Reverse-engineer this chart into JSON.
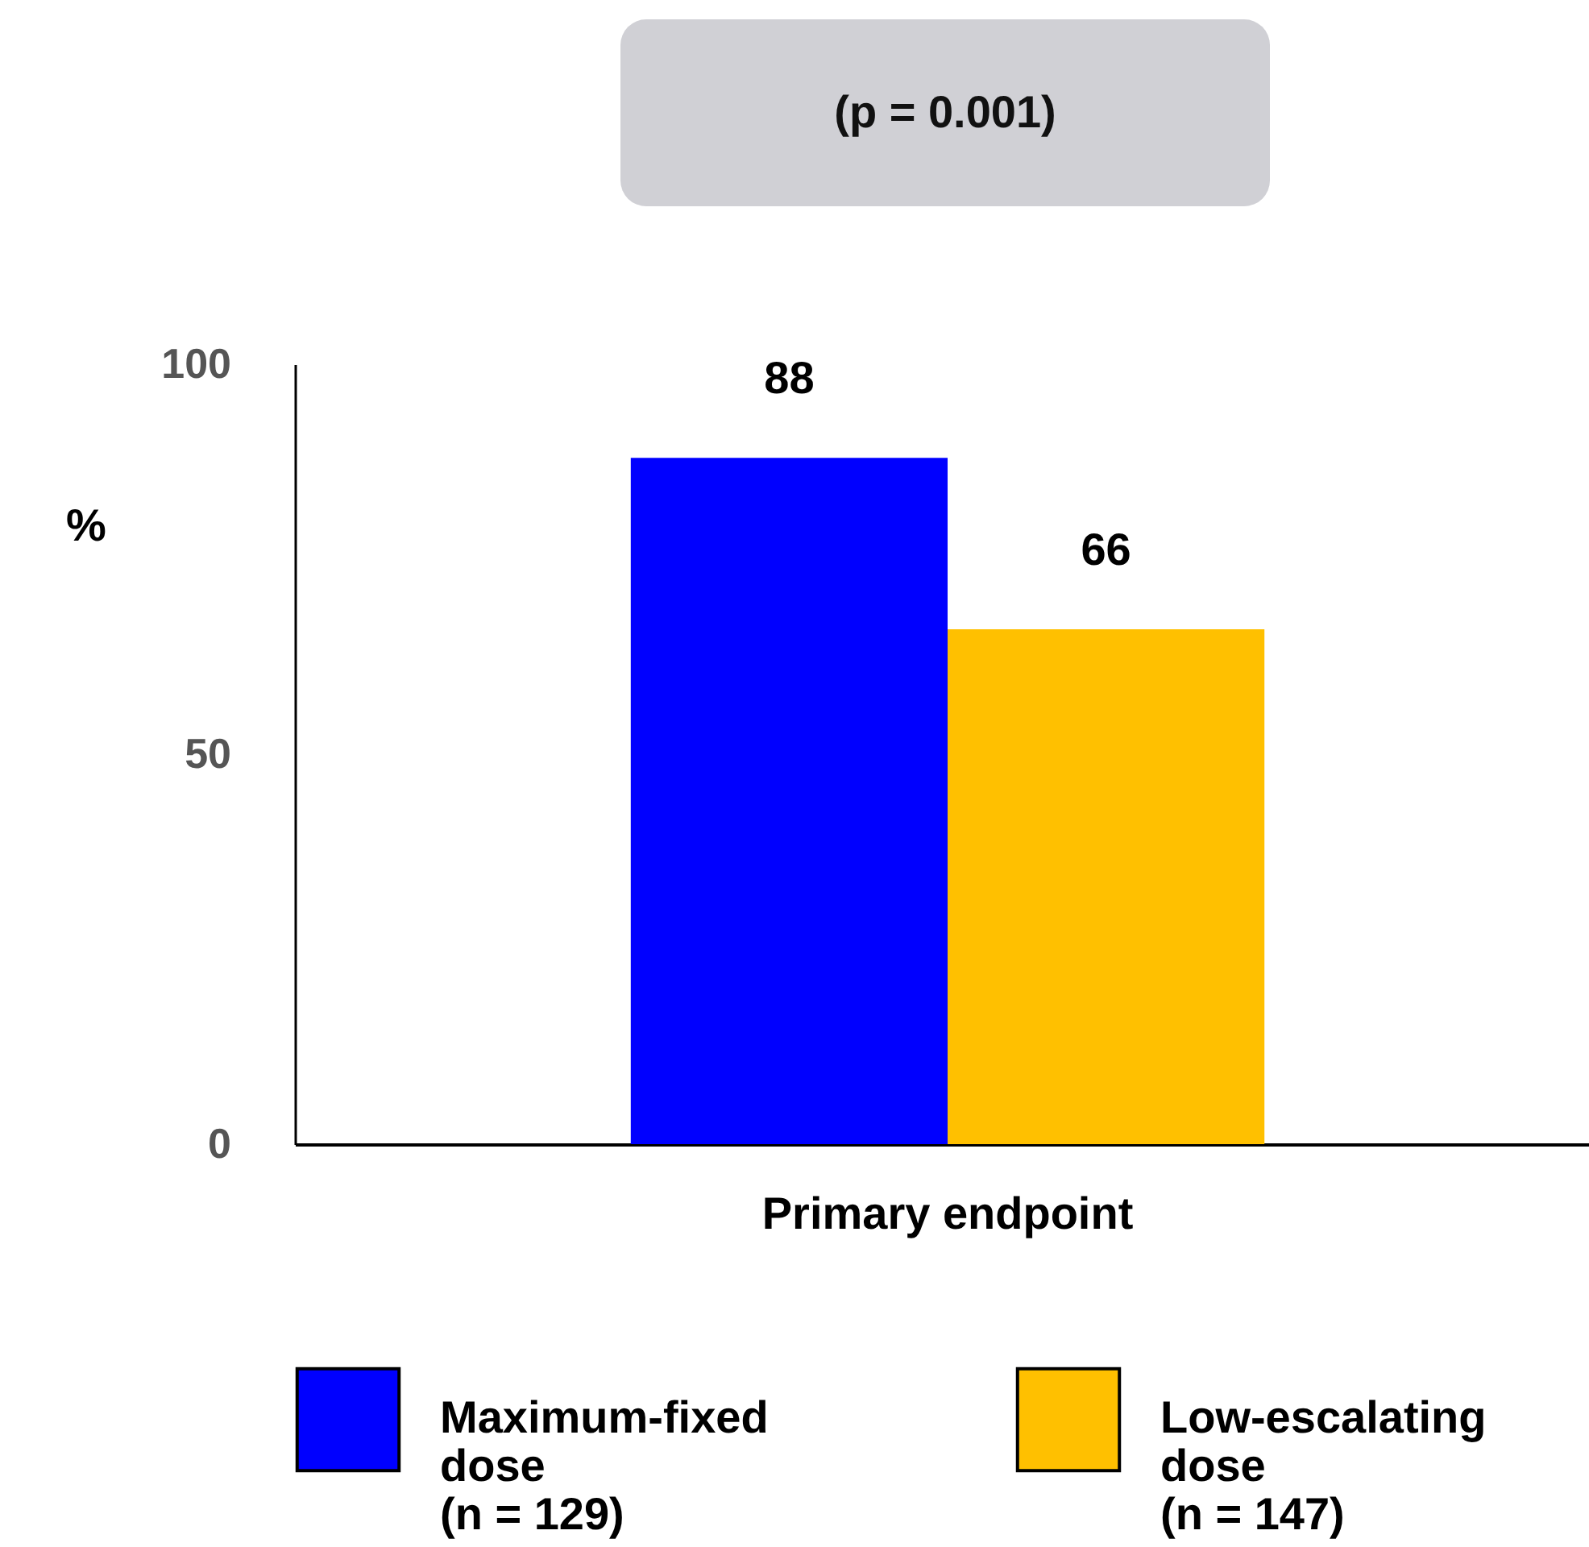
{
  "chart_data": {
    "type": "bar",
    "categories": [
      "Primary endpoint"
    ],
    "series": [
      {
        "name": "Maximum-fixed dose (n = 129)",
        "color": "#0000ff",
        "values": [
          88
        ]
      },
      {
        "name": "Low-escalating dose (n = 147)",
        "color": "#ffc000",
        "values": [
          66
        ]
      }
    ],
    "ylabel": "%",
    "ylim": [
      0,
      100
    ],
    "yticks": [
      0,
      50,
      100
    ],
    "data_labels": true,
    "grid": false,
    "legend": "bottom",
    "annotations": [
      "(p = 0.001)"
    ]
  }
}
